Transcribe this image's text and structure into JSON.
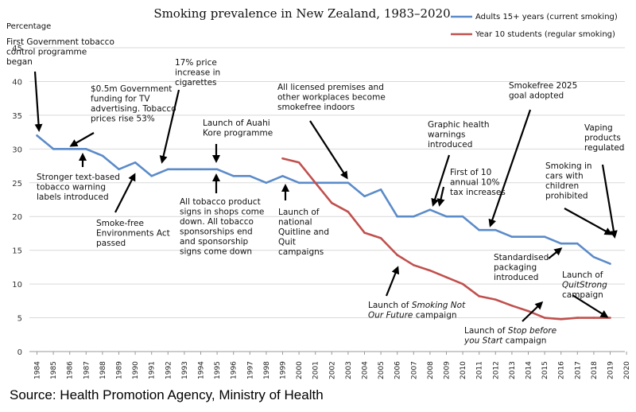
{
  "chart_data": {
    "type": "line",
    "title": "Smoking prevalence in New Zealand, 1983–2020",
    "ylabel": "Percentage",
    "xlabel": "",
    "ylim": [
      0,
      45
    ],
    "yticks": [
      0,
      5,
      10,
      15,
      20,
      25,
      30,
      35,
      40,
      45
    ],
    "x": [
      "1984",
      "1985",
      "1986",
      "1987",
      "1988",
      "1989",
      "1990",
      "1991",
      "1992",
      "1993",
      "1994",
      "1995",
      "1996",
      "1997",
      "1998",
      "1999",
      "2000",
      "2001",
      "2002",
      "2003",
      "2004",
      "2005",
      "2006",
      "2007",
      "2008",
      "2009",
      "2010",
      "2011",
      "2012",
      "2013",
      "2014",
      "2015",
      "2016",
      "2017",
      "2018",
      "2019",
      "2020"
    ],
    "series": [
      {
        "name": "Adults 15+ years (current smoking)",
        "color": "#5b8bc9",
        "values": [
          32,
          30,
          30,
          30,
          29,
          27,
          28,
          26,
          27,
          27,
          27,
          27,
          26,
          26,
          25,
          26,
          25,
          25,
          25,
          25,
          23,
          24,
          20,
          20,
          21,
          20,
          20,
          18,
          18,
          17,
          17,
          17,
          16,
          16,
          14,
          13,
          null
        ]
      },
      {
        "name": "Year 10 students (regular smoking)",
        "color": "#c0504d",
        "values": [
          null,
          null,
          null,
          null,
          null,
          null,
          null,
          null,
          null,
          null,
          null,
          null,
          null,
          null,
          null,
          28.6,
          28,
          25,
          22,
          20.7,
          17.6,
          16.8,
          14.3,
          12.8,
          12,
          11,
          10,
          8.2,
          7.7,
          6.8,
          6,
          5,
          4.8,
          5,
          5,
          5,
          null
        ]
      }
    ],
    "annotations": [
      {
        "lines": [
          "First Government tobacco",
          "control programme",
          "began"
        ]
      },
      {
        "lines": [
          "$0.5m Government",
          "funding for TV",
          "advertising. Tobacco",
          "prices rise 53%"
        ]
      },
      {
        "lines": [
          "17% price",
          "increase in",
          "cigarettes"
        ]
      },
      {
        "lines": [
          "All licensed premises and",
          "other workplaces become",
          "smokefree indoors"
        ]
      },
      {
        "lines": [
          "Smokefree 2025",
          "goal adopted"
        ]
      },
      {
        "lines": [
          "Vaping",
          "products",
          "regulated"
        ]
      },
      {
        "lines": [
          "Launch of Auahi",
          "Kore programme"
        ]
      },
      {
        "lines": [
          "Graphic health",
          "warnings",
          "introduced"
        ]
      },
      {
        "lines": [
          "First of 10",
          "annual 10%",
          "tax increases"
        ]
      },
      {
        "lines": [
          "Smoking in",
          "cars with",
          "children",
          "prohibited"
        ]
      },
      {
        "lines": [
          "Stronger text-based",
          "tobacco warning",
          "labels introduced"
        ]
      },
      {
        "lines": [
          "All tobacco product",
          "signs in shops come",
          "down. All tobacco",
          "sponsorships end",
          "and sponsorship",
          "signs come down"
        ]
      },
      {
        "lines": [
          "Launch of",
          "national",
          "Quitline and",
          "Quit",
          "campaigns"
        ]
      },
      {
        "lines": [
          "Smoke-free",
          "Environments Act",
          "passed"
        ]
      },
      {
        "lines": [
          "Standardised",
          "packaging",
          "introduced"
        ]
      },
      {
        "lines": [
          "Launch of",
          "QuitStrong",
          "campaign"
        ]
      },
      {
        "lines": [
          "Launch of Smoking Not",
          "Our Future campaign"
        ]
      },
      {
        "lines": [
          "Launch of Stop before",
          "you Start campaign"
        ]
      }
    ]
  },
  "source": "Source: Health Promotion Agency, Ministry of Health"
}
